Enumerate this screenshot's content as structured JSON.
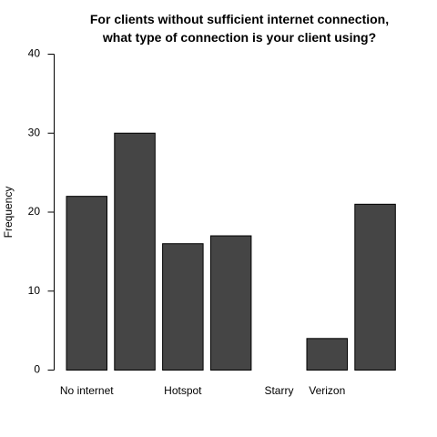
{
  "chart_data": {
    "type": "bar",
    "title_lines": [
      "For clients without sufficient internet connection,",
      "what type of connection is your client using?"
    ],
    "xlabel": "",
    "ylabel": "Frequency",
    "ylim": [
      0,
      40
    ],
    "yticks": [
      0,
      10,
      20,
      30,
      40
    ],
    "categories": [
      "No internet",
      "",
      "Hotspot",
      "",
      "Starry",
      "Verizon",
      ""
    ],
    "values": [
      22,
      30,
      16,
      17,
      0,
      4,
      21
    ],
    "bar_color": "#454545",
    "grid": false,
    "legend": "none"
  }
}
